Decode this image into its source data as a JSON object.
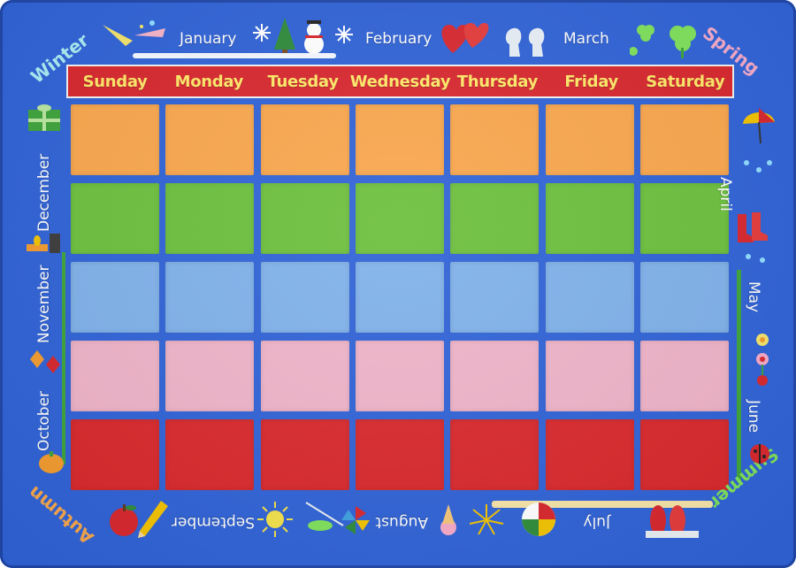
{
  "colors": {
    "rug": "#2f62d6",
    "header_bg": "#d7262d",
    "header_text": "#ffe867",
    "rows": [
      "#f9a64c",
      "#6cbf3c",
      "#7fb1ea",
      "#efb3c8",
      "#d9282c"
    ]
  },
  "days": [
    "Sunday",
    "Monday",
    "Tuesday",
    "Wednesday",
    "Thursday",
    "Friday",
    "Saturday"
  ],
  "grid": {
    "rows": 5,
    "columns": 7
  },
  "months": {
    "january": "January",
    "february": "February",
    "march": "March",
    "april": "April",
    "may": "May",
    "june": "June",
    "july": "July",
    "august": "August",
    "september": "September",
    "october": "October",
    "november": "November",
    "december": "December"
  },
  "seasons": {
    "winter": "Winter",
    "spring": "Spring",
    "summer": "Summer",
    "autumn": "Autumn"
  },
  "season_colors": {
    "winter": "#a8ecf2",
    "spring": "#f6a9c8",
    "summer": "#7ee05a",
    "autumn": "#f7a64a"
  },
  "icons": [
    "party-horn-icon",
    "snowflake-icon",
    "tree-icon",
    "snowman-icon",
    "heart-icon",
    "silhouette-icon",
    "clover-icon",
    "umbrella-icon",
    "raindrop-icon",
    "boots-icon",
    "flower-icon",
    "ladybug-icon",
    "flip-flops-icon",
    "beach-ball-icon",
    "fireworks-icon",
    "ice-cream-icon",
    "pinwheel-icon",
    "sun-icon",
    "fishing-rod-icon",
    "pencil-icon",
    "apple-icon",
    "pumpkin-icon",
    "leaf-icon",
    "candle-icon",
    "gift-icon"
  ]
}
